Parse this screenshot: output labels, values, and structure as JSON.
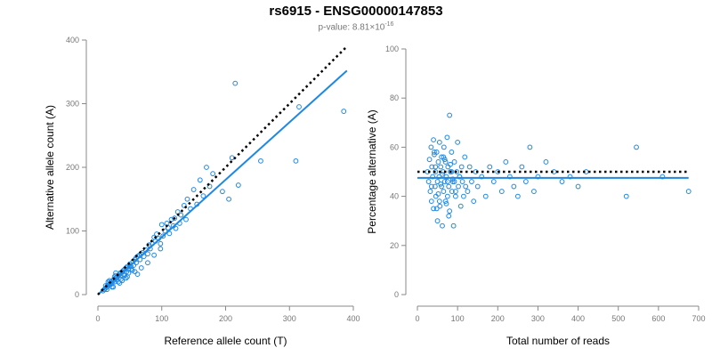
{
  "header": {
    "title": "rs6915 - ENSG00000147853",
    "pvalue_prefix": "p-value: 8.81×10",
    "pvalue_exponent": "-16"
  },
  "colors": {
    "points": "#1e88e5",
    "fit": "#1e88e5",
    "reference": "#000000",
    "axis": "#888888"
  },
  "chart_data": [
    {
      "type": "scatter",
      "name": "allele-counts",
      "xlabel": "Reference allele count (T)",
      "ylabel": "Alternative allele count (A)",
      "xlim": [
        0,
        400
      ],
      "ylim": [
        0,
        400
      ],
      "xticks": [
        0,
        100,
        200,
        300,
        400
      ],
      "yticks": [
        0,
        100,
        200,
        300,
        400
      ],
      "fit_line": {
        "x": [
          0,
          390
        ],
        "y": [
          0,
          352
        ],
        "style": "solid"
      },
      "reference_line": {
        "x": [
          0,
          388
        ],
        "y": [
          0,
          388
        ],
        "style": "dotted"
      },
      "x": [
        8,
        10,
        12,
        14,
        15,
        16,
        18,
        20,
        20,
        22,
        24,
        25,
        26,
        28,
        28,
        30,
        30,
        32,
        34,
        35,
        36,
        38,
        40,
        40,
        42,
        44,
        45,
        46,
        48,
        50,
        50,
        52,
        55,
        56,
        58,
        60,
        60,
        62,
        65,
        66,
        68,
        70,
        72,
        75,
        78,
        80,
        82,
        85,
        88,
        90,
        92,
        95,
        98,
        100,
        102,
        105,
        108,
        110,
        112,
        115,
        118,
        120,
        122,
        125,
        128,
        130,
        135,
        138,
        140,
        145,
        150,
        155,
        160,
        165,
        170,
        175,
        180,
        195,
        205,
        210,
        215,
        220,
        255,
        310,
        315,
        385,
        12,
        18,
        22,
        26,
        32,
        36,
        42,
        48,
        54,
        62,
        14,
        24,
        34,
        44,
        58,
        68,
        78,
        88,
        98,
        16,
        28,
        38,
        46,
        52
      ],
      "y": [
        6,
        8,
        10,
        12,
        14,
        15,
        16,
        16,
        20,
        18,
        22,
        24,
        20,
        26,
        30,
        24,
        28,
        30,
        32,
        34,
        30,
        36,
        38,
        32,
        40,
        42,
        36,
        44,
        40,
        45,
        48,
        44,
        52,
        46,
        55,
        58,
        50,
        60,
        62,
        55,
        64,
        66,
        60,
        70,
        64,
        78,
        72,
        80,
        90,
        84,
        95,
        88,
        80,
        110,
        92,
        100,
        112,
        105,
        96,
        118,
        108,
        120,
        104,
        130,
        112,
        125,
        140,
        118,
        150,
        135,
        165,
        142,
        180,
        155,
        200,
        170,
        190,
        162,
        150,
        215,
        332,
        172,
        210,
        210,
        295,
        288,
        14,
        22,
        12,
        28,
        20,
        24,
        30,
        34,
        38,
        32,
        8,
        12,
        18,
        26,
        36,
        42,
        50,
        62,
        72,
        20,
        34,
        22,
        28,
        40
      ]
    },
    {
      "type": "scatter",
      "name": "percentage-alternative",
      "xlabel": "Total number of reads",
      "ylabel": "Percentage alternative (A)",
      "xlim": [
        0,
        700
      ],
      "ylim": [
        0,
        100
      ],
      "xticks": [
        0,
        100,
        200,
        300,
        400,
        500,
        600,
        700
      ],
      "yticks": [
        0,
        20,
        40,
        60,
        80,
        100
      ],
      "fit_line": {
        "x": [
          0,
          675
        ],
        "y": [
          47.5,
          47.5
        ],
        "style": "solid"
      },
      "reference_line": {
        "x": [
          0,
          675
        ],
        "y": [
          50,
          50
        ],
        "style": "dotted"
      },
      "x": [
        25,
        28,
        30,
        32,
        34,
        35,
        36,
        38,
        40,
        40,
        42,
        44,
        45,
        46,
        48,
        50,
        50,
        52,
        54,
        55,
        56,
        58,
        60,
        60,
        62,
        64,
        65,
        66,
        68,
        70,
        70,
        72,
        74,
        75,
        76,
        78,
        80,
        80,
        82,
        85,
        86,
        88,
        90,
        92,
        95,
        98,
        100,
        102,
        105,
        108,
        110,
        112,
        115,
        118,
        120,
        125,
        130,
        135,
        140,
        145,
        150,
        160,
        170,
        180,
        190,
        200,
        210,
        220,
        230,
        240,
        250,
        260,
        270,
        280,
        290,
        300,
        320,
        340,
        360,
        380,
        400,
        420,
        520,
        545,
        610,
        675,
        35,
        45,
        55,
        65,
        75,
        85,
        95,
        105,
        48,
        58,
        68,
        78,
        88,
        42,
        52,
        62,
        72,
        82,
        92
      ],
      "y": [
        50,
        46,
        55,
        42,
        60,
        38,
        52,
        48,
        63,
        35,
        57,
        44,
        50,
        40,
        58,
        46,
        30,
        54,
        48,
        62,
        36,
        52,
        44,
        56,
        28,
        50,
        42,
        60,
        46,
        38,
        54,
        48,
        64,
        40,
        52,
        44,
        73,
        34,
        50,
        58,
        42,
        46,
        28,
        54,
        40,
        50,
        62,
        44,
        48,
        36,
        52,
        46,
        40,
        56,
        44,
        42,
        52,
        46,
        38,
        50,
        44,
        48,
        40,
        52,
        46,
        50,
        42,
        54,
        48,
        44,
        40,
        52,
        46,
        60,
        42,
        48,
        54,
        50,
        46,
        48,
        44,
        50,
        40,
        60,
        48,
        42,
        44,
        52,
        38,
        56,
        46,
        50,
        42,
        48,
        35,
        45,
        55,
        32,
        47,
        58,
        41,
        49,
        37,
        53,
        46
      ]
    }
  ]
}
